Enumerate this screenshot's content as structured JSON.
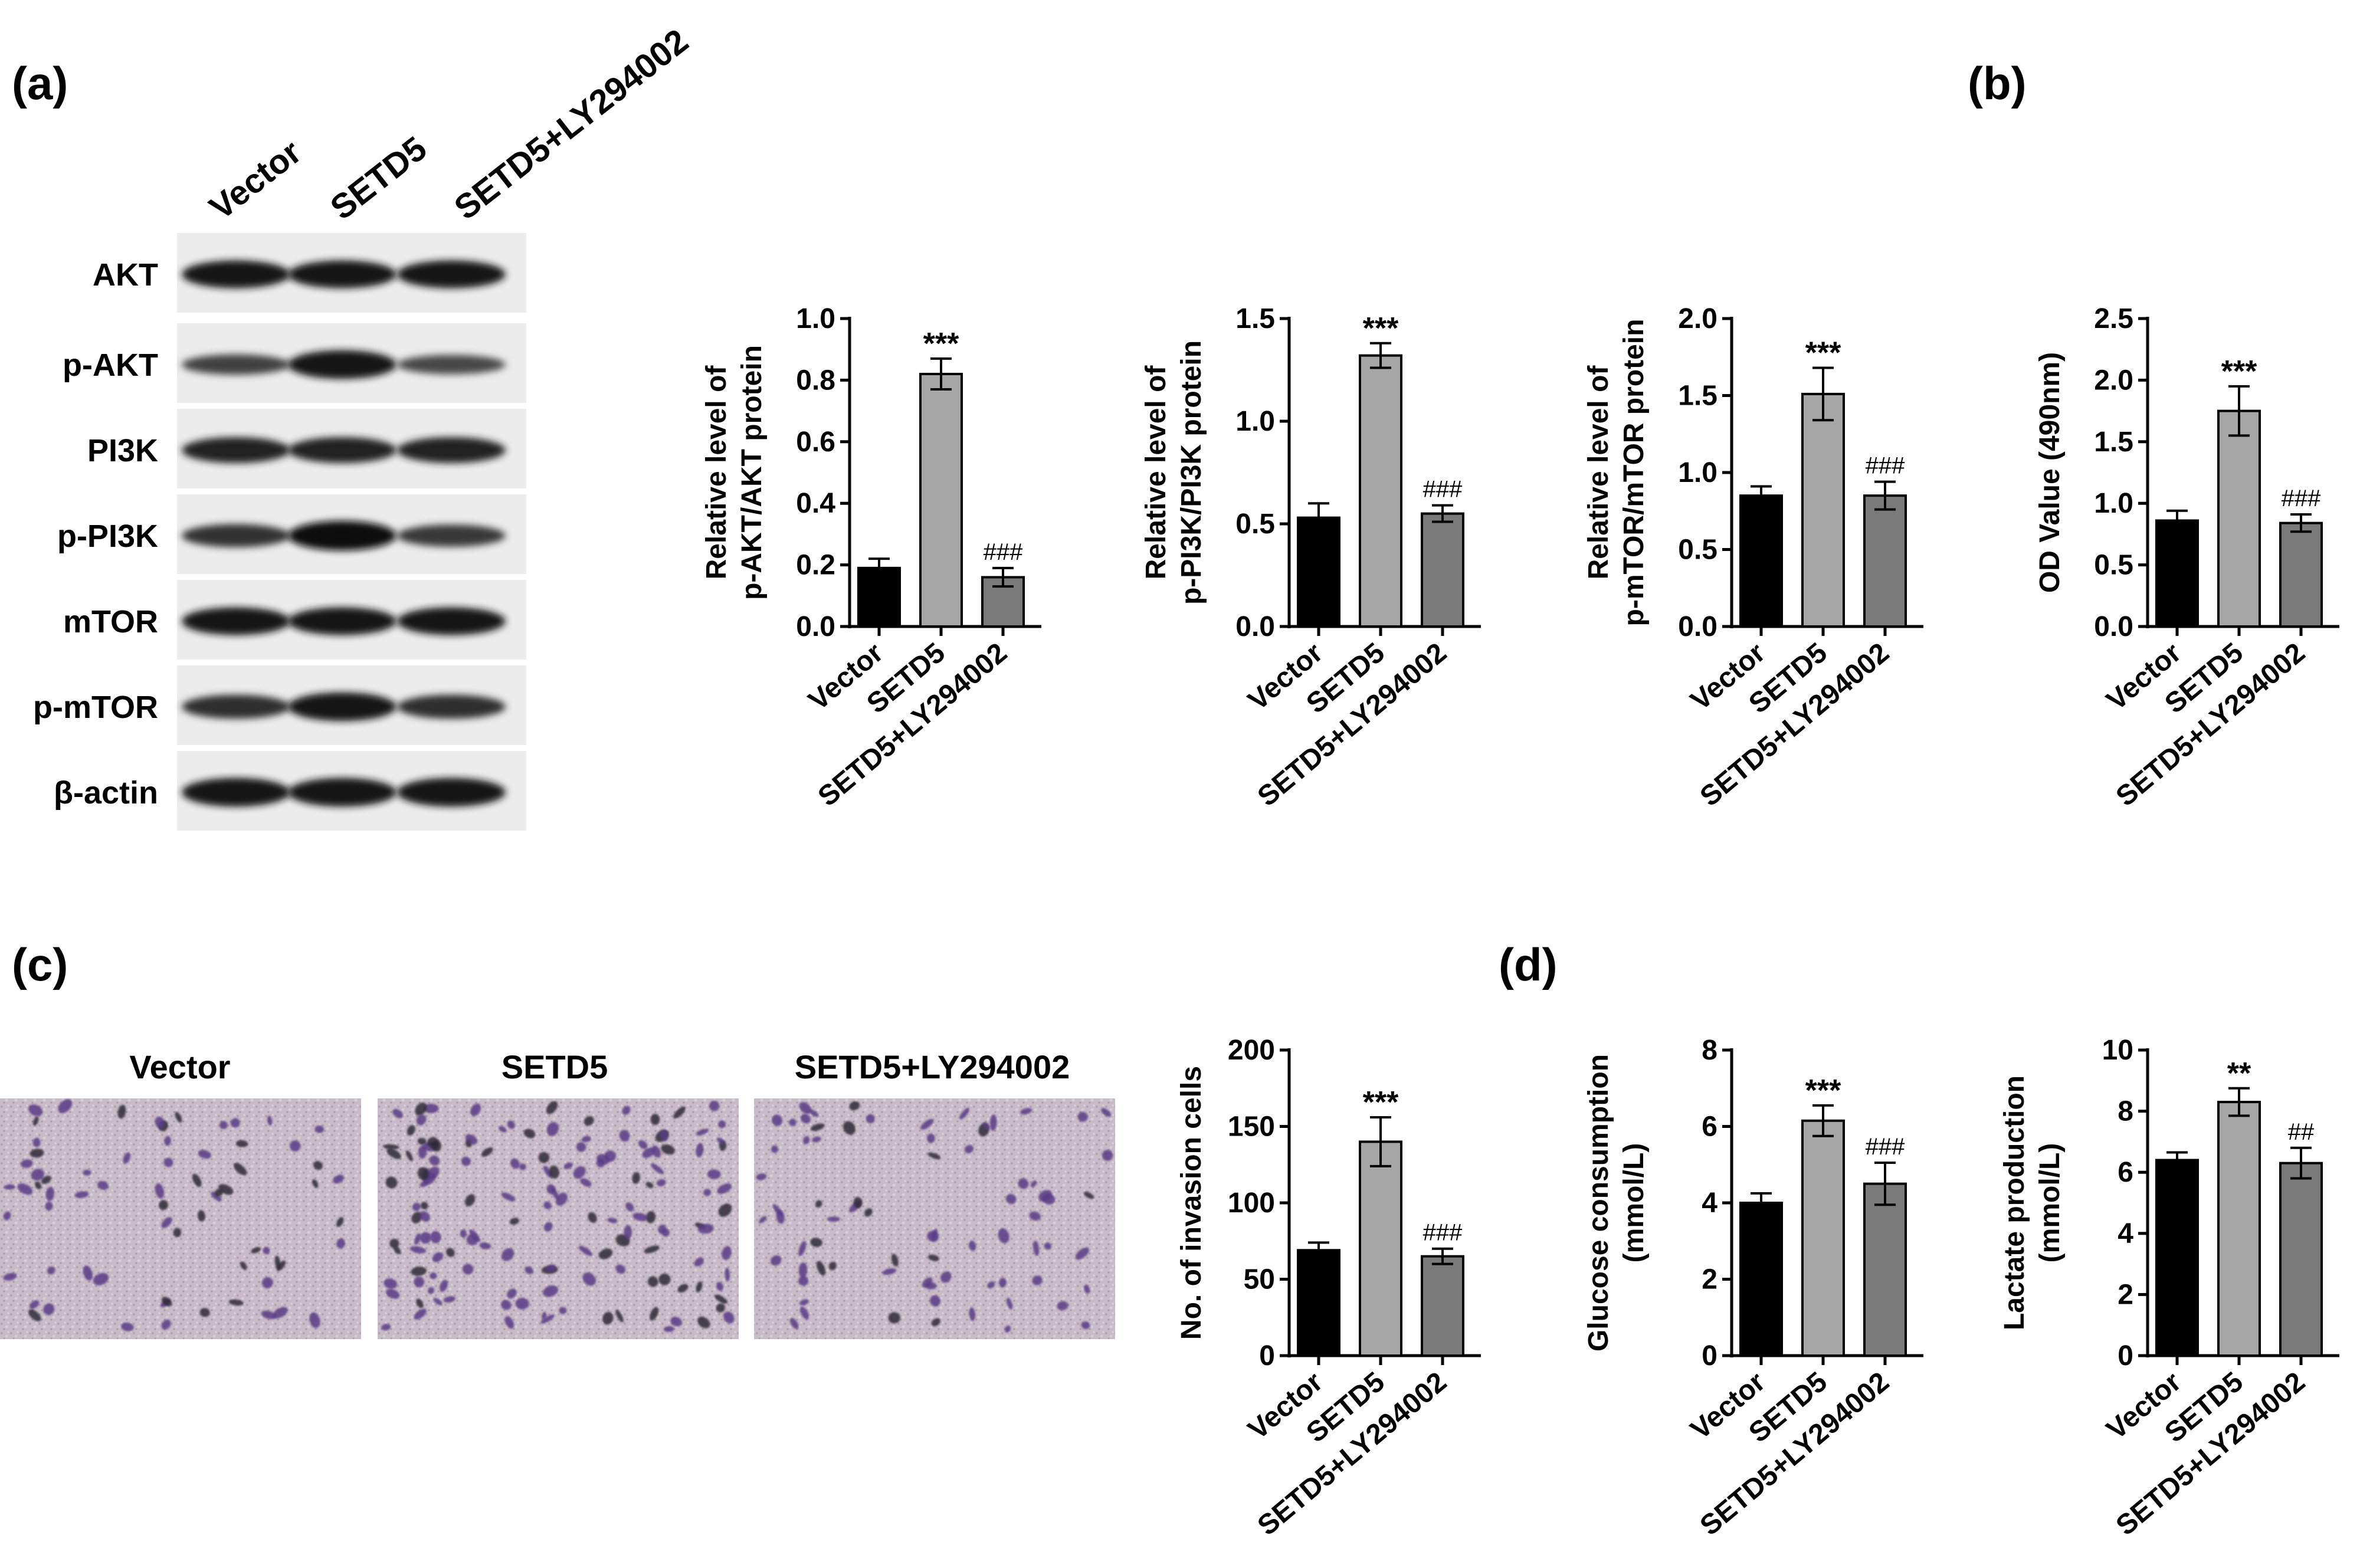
{
  "panels": {
    "a": "(a)",
    "b": "(b)",
    "c": "(c)",
    "d": "(d)"
  },
  "groups": [
    "Vector",
    "SETD5",
    "SETD5+LY294002"
  ],
  "colors": {
    "bar": [
      "#000000",
      "#a6a6a6",
      "#7a7a7a"
    ],
    "micro_bg": "#c7b7c3",
    "cell": "#5a3a86"
  },
  "western_blot": {
    "lanes": [
      "Vector",
      "SETD5",
      "SETD5+LY294002"
    ],
    "proteins": [
      {
        "name": "AKT",
        "intensity": [
          0.85,
          0.85,
          0.85
        ]
      },
      {
        "name": "p-AKT",
        "intensity": [
          0.45,
          0.9,
          0.4
        ]
      },
      {
        "name": "PI3K",
        "intensity": [
          0.75,
          0.75,
          0.75
        ]
      },
      {
        "name": "p-PI3K",
        "intensity": [
          0.6,
          0.95,
          0.55
        ]
      },
      {
        "name": "mTOR",
        "intensity": [
          0.85,
          0.85,
          0.85
        ]
      },
      {
        "name": "p-mTOR",
        "intensity": [
          0.65,
          0.9,
          0.65
        ]
      },
      {
        "name": "β-actin",
        "intensity": [
          0.9,
          0.9,
          0.9
        ]
      }
    ]
  },
  "micrographs": {
    "titles": [
      "Vector",
      "SETD5",
      "SETD5+LY294002"
    ],
    "cell_density": [
      0.45,
      1.0,
      0.5
    ]
  },
  "chart_data": [
    {
      "type": "bar",
      "panel": "a",
      "categories": [
        "Vector",
        "SETD5",
        "SETD5+LY294002"
      ],
      "values": [
        0.19,
        0.82,
        0.16
      ],
      "errors": [
        0.03,
        0.05,
        0.03
      ],
      "ylabel": [
        "Relative level of",
        "p-AKT/AKT protein"
      ],
      "ylim": [
        0,
        1.0
      ],
      "yticks": [
        "0.0",
        "0.2",
        "0.4",
        "0.6",
        "0.8",
        "1.0"
      ],
      "annotations": [
        "",
        "***",
        "###"
      ]
    },
    {
      "type": "bar",
      "panel": "a",
      "categories": [
        "Vector",
        "SETD5",
        "SETD5+LY294002"
      ],
      "values": [
        0.53,
        1.32,
        0.55
      ],
      "errors": [
        0.07,
        0.06,
        0.04
      ],
      "ylabel": [
        "Relative level of",
        "p-PI3K/PI3K protein"
      ],
      "ylim": [
        0,
        1.5
      ],
      "yticks": [
        "0.0",
        "0.5",
        "1.0",
        "1.5"
      ],
      "annotations": [
        "",
        "***",
        "###"
      ]
    },
    {
      "type": "bar",
      "panel": "a",
      "categories": [
        "Vector",
        "SETD5",
        "SETD5+LY294002"
      ],
      "values": [
        0.85,
        1.51,
        0.85
      ],
      "errors": [
        0.06,
        0.17,
        0.09
      ],
      "ylabel": [
        "Relative level of",
        "p-mTOR/mTOR protein"
      ],
      "ylim": [
        0,
        2.0
      ],
      "yticks": [
        "0.0",
        "0.5",
        "1.0",
        "1.5",
        "2.0"
      ],
      "annotations": [
        "",
        "***",
        "###"
      ]
    },
    {
      "type": "bar",
      "panel": "b",
      "categories": [
        "Vector",
        "SETD5",
        "SETD5+LY294002"
      ],
      "values": [
        0.86,
        1.75,
        0.84
      ],
      "errors": [
        0.08,
        0.2,
        0.07
      ],
      "ylabel": [
        "OD Value (490nm)"
      ],
      "ylim": [
        0,
        2.5
      ],
      "yticks": [
        "0.0",
        "0.5",
        "1.0",
        "1.5",
        "2.0",
        "2.5"
      ],
      "annotations": [
        "",
        "***",
        "###"
      ]
    },
    {
      "type": "bar",
      "panel": "c",
      "categories": [
        "Vector",
        "SETD5",
        "SETD5+LY294002"
      ],
      "values": [
        69,
        140,
        65
      ],
      "errors": [
        5,
        16,
        5
      ],
      "ylabel": [
        "No. of  invasion cells"
      ],
      "ylim": [
        0,
        200
      ],
      "yticks": [
        "0",
        "50",
        "100",
        "150",
        "200"
      ],
      "annotations": [
        "",
        "***",
        "###"
      ]
    },
    {
      "type": "bar",
      "panel": "d",
      "categories": [
        "Vector",
        "SETD5",
        "SETD5+LY294002"
      ],
      "values": [
        4.0,
        6.15,
        4.5
      ],
      "errors": [
        0.25,
        0.4,
        0.55
      ],
      "ylabel": [
        "Glucose consumption",
        "(mmol/L)"
      ],
      "ylim": [
        0,
        8
      ],
      "yticks": [
        "0",
        "2",
        "4",
        "6",
        "8"
      ],
      "annotations": [
        "",
        "***",
        "###"
      ]
    },
    {
      "type": "bar",
      "panel": "d",
      "categories": [
        "Vector",
        "SETD5",
        "SETD5+LY294002"
      ],
      "values": [
        6.4,
        8.3,
        6.3
      ],
      "errors": [
        0.25,
        0.45,
        0.5
      ],
      "ylabel": [
        "Lactate production",
        "(mmol/L)"
      ],
      "ylim": [
        0,
        10
      ],
      "yticks": [
        "0",
        "2",
        "4",
        "6",
        "8",
        "10"
      ],
      "annotations": [
        "",
        "**",
        "##"
      ]
    }
  ]
}
